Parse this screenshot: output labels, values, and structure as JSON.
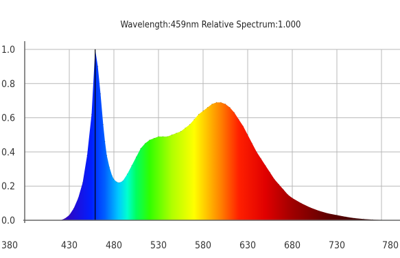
{
  "chart_data": {
    "type": "area",
    "title": "Wavelength:459nm  Relative Spectrum:1.000",
    "xlabel": "",
    "ylabel": "",
    "xlim": [
      380,
      780
    ],
    "ylim": [
      0,
      1.0
    ],
    "x_ticks": [
      "380",
      "430",
      "480",
      "530",
      "580",
      "630",
      "680",
      "730",
      "780"
    ],
    "y_ticks": [
      "0.0",
      "0.2",
      "0.4",
      "0.6",
      "0.8",
      "1.0"
    ],
    "grid": true,
    "marker_wavelength": 459,
    "x": [
      380,
      400,
      420,
      425,
      430,
      435,
      440,
      445,
      450,
      455,
      459,
      462,
      465,
      468,
      470,
      472,
      475,
      478,
      480,
      483,
      486,
      490,
      495,
      500,
      505,
      510,
      515,
      520,
      525,
      530,
      535,
      540,
      545,
      550,
      555,
      560,
      565,
      570,
      575,
      580,
      585,
      590,
      595,
      600,
      605,
      610,
      615,
      620,
      625,
      630,
      635,
      640,
      645,
      650,
      655,
      660,
      665,
      670,
      675,
      680,
      690,
      700,
      710,
      720,
      730,
      740,
      750,
      760,
      770,
      780
    ],
    "values": [
      0,
      0,
      0,
      0.01,
      0.03,
      0.07,
      0.13,
      0.22,
      0.38,
      0.62,
      1.0,
      0.9,
      0.74,
      0.56,
      0.46,
      0.38,
      0.31,
      0.26,
      0.24,
      0.225,
      0.22,
      0.23,
      0.27,
      0.32,
      0.37,
      0.42,
      0.45,
      0.47,
      0.48,
      0.49,
      0.49,
      0.49,
      0.5,
      0.51,
      0.52,
      0.54,
      0.56,
      0.59,
      0.62,
      0.64,
      0.66,
      0.68,
      0.69,
      0.69,
      0.68,
      0.66,
      0.63,
      0.59,
      0.55,
      0.5,
      0.45,
      0.4,
      0.36,
      0.32,
      0.28,
      0.24,
      0.21,
      0.18,
      0.15,
      0.13,
      0.1,
      0.075,
      0.055,
      0.04,
      0.03,
      0.02,
      0.012,
      0.007,
      0.004,
      0.002
    ]
  }
}
